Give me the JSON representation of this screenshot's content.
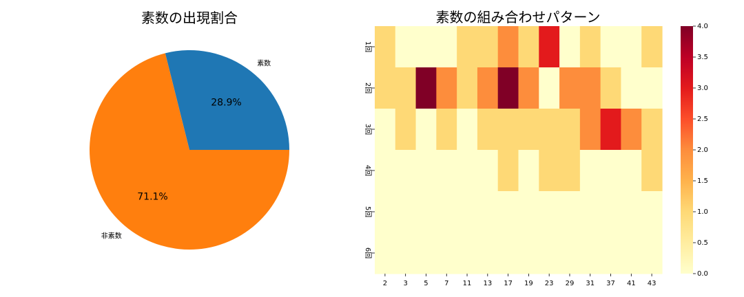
{
  "chart_data": [
    {
      "type": "pie",
      "title": "素数の出現割合",
      "labels": [
        "素数",
        "非素数"
      ],
      "values": [
        28.9,
        71.1
      ],
      "value_labels": [
        "28.9%",
        "71.1%"
      ],
      "colors": [
        "#1f77b4",
        "#ff7f0e"
      ]
    },
    {
      "type": "heatmap",
      "title": "素数の組み合わせパターン",
      "x_categories": [
        "2",
        "3",
        "5",
        "7",
        "11",
        "13",
        "17",
        "19",
        "23",
        "29",
        "31",
        "37",
        "41",
        "43"
      ],
      "y_categories": [
        "1回",
        "2回",
        "3回",
        "4回",
        "5回",
        "6回"
      ],
      "values": [
        [
          1,
          0,
          0,
          0,
          1,
          1,
          2,
          1,
          3,
          0,
          1,
          0,
          0,
          1
        ],
        [
          1,
          1,
          4,
          2,
          1,
          2,
          4,
          2,
          0,
          2,
          2,
          1,
          0,
          0
        ],
        [
          0,
          1,
          0,
          1,
          0,
          1,
          1,
          1,
          1,
          1,
          2,
          3,
          2,
          1
        ],
        [
          0,
          0,
          0,
          0,
          0,
          0,
          1,
          0,
          1,
          1,
          0,
          0,
          0,
          1
        ],
        [
          0,
          0,
          0,
          0,
          0,
          0,
          0,
          0,
          0,
          0,
          0,
          0,
          0,
          0
        ],
        [
          0,
          0,
          0,
          0,
          0,
          0,
          0,
          0,
          0,
          0,
          0,
          0,
          0,
          0
        ]
      ],
      "vmin": 0,
      "vmax": 4,
      "colormap": "YlOrRd",
      "colorbar_ticks": [
        "0.0",
        "0.5",
        "1.0",
        "1.5",
        "2.0",
        "2.5",
        "3.0",
        "3.5",
        "4.0"
      ]
    }
  ]
}
